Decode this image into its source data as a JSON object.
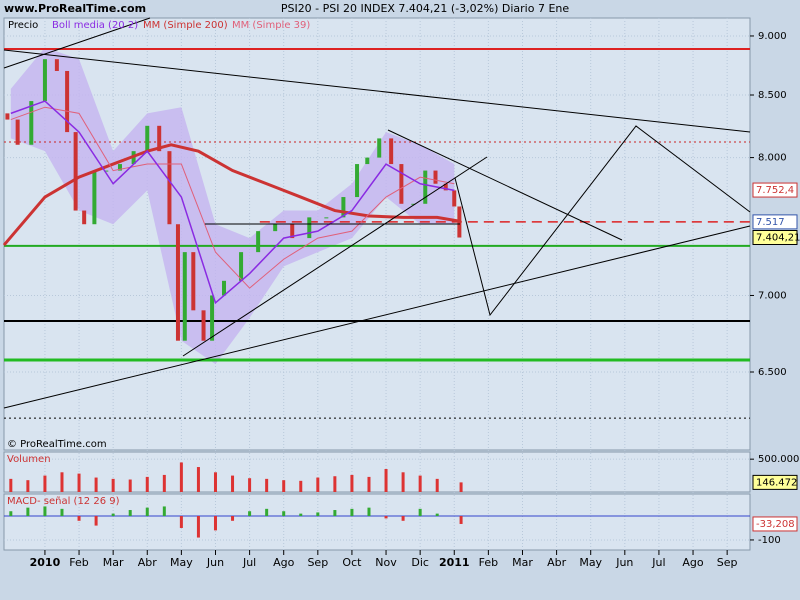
{
  "site": "www.ProRealTime.com",
  "copyright": "© ProRealTime.com",
  "chart_data": [
    {
      "type": "candlestick",
      "title": "PSI20 - PSI 20 INDEX   7.404,21 (-3,02%)   Diario  7 Ene",
      "log_scale": true,
      "ylim": [
        6027,
        9158
      ],
      "xlim": [
        -1.2,
        20.67
      ],
      "yticks": [
        {
          "value": 9000,
          "label": "9.000"
        },
        {
          "value": 8500,
          "label": "8.500"
        },
        {
          "value": 8000,
          "label": "8.000"
        },
        {
          "value": 7000,
          "label": "7.000"
        },
        {
          "value": 6500,
          "label": "6.500"
        }
      ],
      "xticks": [
        {
          "value": 0,
          "label": "2010"
        },
        {
          "value": 1,
          "label": "Feb"
        },
        {
          "value": 2,
          "label": "Mar"
        },
        {
          "value": 3,
          "label": "Abr"
        },
        {
          "value": 4,
          "label": "May"
        },
        {
          "value": 5,
          "label": "Jun"
        },
        {
          "value": 6,
          "label": "Jul"
        },
        {
          "value": 7,
          "label": "Ago"
        },
        {
          "value": 8,
          "label": "Sep"
        },
        {
          "value": 9,
          "label": "Oct"
        },
        {
          "value": 10,
          "label": "Nov"
        },
        {
          "value": 11,
          "label": "Dic"
        },
        {
          "value": 12,
          "label": "2011"
        },
        {
          "value": 13,
          "label": "Feb"
        },
        {
          "value": 14,
          "label": "Mar"
        },
        {
          "value": 15,
          "label": "Abr"
        },
        {
          "value": 16,
          "label": "May"
        },
        {
          "value": 17,
          "label": "Jun"
        },
        {
          "value": 18,
          "label": "Jul"
        },
        {
          "value": 19,
          "label": "Ago"
        },
        {
          "value": 20,
          "label": "Sep"
        }
      ],
      "price": {
        "name": "Precio",
        "up_color": "#33aa33",
        "down_color": "#cc3333",
        "x": [
          -1.2,
          -1.0,
          -0.6,
          -0.2,
          0.2,
          0.5,
          0.8,
          1.0,
          1.3,
          1.6,
          2.0,
          2.4,
          2.8,
          3.2,
          3.5,
          3.8,
          4.0,
          4.2,
          4.5,
          4.8,
          5.0,
          5.5,
          6.0,
          6.5,
          7.0,
          7.5,
          8.0,
          8.5,
          9.0,
          9.3,
          9.6,
          10.0,
          10.3,
          10.6,
          11.0,
          11.3,
          11.6,
          11.9,
          12.1,
          12.2
        ],
        "values": [
          8350,
          8300,
          8100,
          8450,
          8800,
          8700,
          8200,
          7600,
          7500,
          7900,
          7900,
          7950,
          8050,
          8250,
          8050,
          7500,
          6700,
          7300,
          6900,
          6700,
          7000,
          7100,
          7300,
          7450,
          7500,
          7400,
          7550,
          7550,
          7700,
          7950,
          8000,
          8150,
          7950,
          7650,
          7650,
          7900,
          7800,
          7750,
          7630,
          7404
        ]
      },
      "boll": {
        "name": "Boll media (20 2)",
        "color": "#8a2be2",
        "band_color": "#c4b4f0",
        "x": [
          -1,
          0,
          1,
          2,
          3,
          4,
          5,
          6,
          7,
          8,
          9,
          10,
          11,
          12
        ],
        "values": [
          8350,
          8450,
          8200,
          7800,
          8050,
          7700,
          6950,
          7150,
          7400,
          7450,
          7600,
          7950,
          7800,
          7750
        ],
        "upper": [
          8550,
          8900,
          8800,
          8050,
          8350,
          8400,
          7500,
          7400,
          7600,
          7600,
          7800,
          8200,
          8100,
          7950
        ],
        "lower": [
          8150,
          8050,
          7600,
          7500,
          7750,
          6700,
          6550,
          6850,
          7200,
          7300,
          7400,
          7700,
          7500,
          7500
        ]
      },
      "ma200": {
        "name": "MM (Simple 200)",
        "color": "#cc3333",
        "x": [
          -1.2,
          0,
          1,
          2,
          3,
          3.7,
          4.5,
          5.5,
          6.5,
          7.5,
          8.5,
          9.5,
          10.5,
          11.5,
          12.2
        ],
        "values": [
          7350,
          7700,
          7850,
          7950,
          8050,
          8100,
          8050,
          7900,
          7800,
          7700,
          7600,
          7560,
          7550,
          7550,
          7520
        ]
      },
      "ma39": {
        "name": "MM (Simple 39)",
        "color": "#e0607a",
        "x": [
          -1,
          0,
          1,
          2,
          3,
          4,
          5,
          6,
          7,
          8,
          9,
          10,
          11,
          12
        ],
        "values": [
          8300,
          8400,
          8350,
          7900,
          7950,
          7950,
          7300,
          7050,
          7250,
          7400,
          7450,
          7700,
          7850,
          7800
        ]
      },
      "hlines": [
        {
          "value": 8887,
          "color": "#dd2222",
          "style": "solid",
          "start": -1.2
        },
        {
          "value": 8122,
          "color": "#cc2222",
          "style": "dotted",
          "start": -1.2
        },
        {
          "value": 7517,
          "color": "#dd2222",
          "style": "dashed",
          "start": 6.3
        },
        {
          "value": 7344,
          "color": "#22aa22",
          "style": "solid",
          "start": -1.2
        },
        {
          "value": 6829,
          "color": "#000000",
          "style": "solid",
          "start": -1.2
        },
        {
          "value": 6576,
          "color": "#22bb22",
          "style": "thick",
          "start": -1.2
        },
        {
          "value": 6216,
          "color": "#000000",
          "style": "dotted",
          "start": -1.2
        }
      ],
      "price_labels": [
        {
          "value": 7752.4,
          "label": "7.752,4",
          "color": "#cc3333",
          "fill": "#ffffff"
        },
        {
          "value": 7517,
          "label": "7.517",
          "color": "#3355aa",
          "fill": "#ffffff"
        },
        {
          "value": 7404.21,
          "label": "7.404,21",
          "color": "#000000",
          "fill": "#ffff99"
        }
      ]
    },
    {
      "type": "bar",
      "title": "Volumen",
      "color": "#dd3333",
      "ylim": [
        0,
        609000
      ],
      "yticks": [
        {
          "value": 500000,
          "label": "500.000"
        }
      ],
      "x": [
        -1,
        -0.5,
        0,
        0.5,
        1,
        1.5,
        2,
        2.5,
        3,
        3.5,
        4,
        4.5,
        5,
        5.5,
        6,
        6.5,
        7,
        7.5,
        8,
        8.5,
        9,
        9.5,
        10,
        10.5,
        11,
        11.5,
        12.2
      ],
      "values": [
        200000,
        180000,
        250000,
        300000,
        280000,
        220000,
        200000,
        190000,
        230000,
        260000,
        450000,
        380000,
        300000,
        250000,
        210000,
        200000,
        180000,
        170000,
        220000,
        240000,
        260000,
        230000,
        350000,
        300000,
        250000,
        200000,
        146472
      ],
      "last_label": {
        "value": 146472,
        "label": "146.472"
      }
    },
    {
      "type": "histogram-macd",
      "title": "MACD- señal (12 26 9)",
      "up_color": "#33aa33",
      "down_color": "#dd3333",
      "ylim": [
        -142,
        92
      ],
      "yticks": [
        -100
      ],
      "x": [
        -1,
        -0.5,
        0,
        0.5,
        1,
        1.5,
        2,
        2.5,
        3,
        3.5,
        4,
        4.5,
        5,
        5.5,
        6,
        6.5,
        7,
        7.5,
        8,
        8.5,
        9,
        9.5,
        10,
        10.5,
        11,
        11.5,
        12.2
      ],
      "values": [
        20,
        35,
        40,
        30,
        -20,
        -40,
        10,
        25,
        35,
        40,
        -50,
        -90,
        -60,
        -20,
        20,
        30,
        20,
        10,
        15,
        25,
        30,
        35,
        -10,
        -20,
        30,
        10,
        -33.208
      ],
      "last_label": {
        "value": -33.208,
        "label": "-33,208"
      }
    }
  ]
}
